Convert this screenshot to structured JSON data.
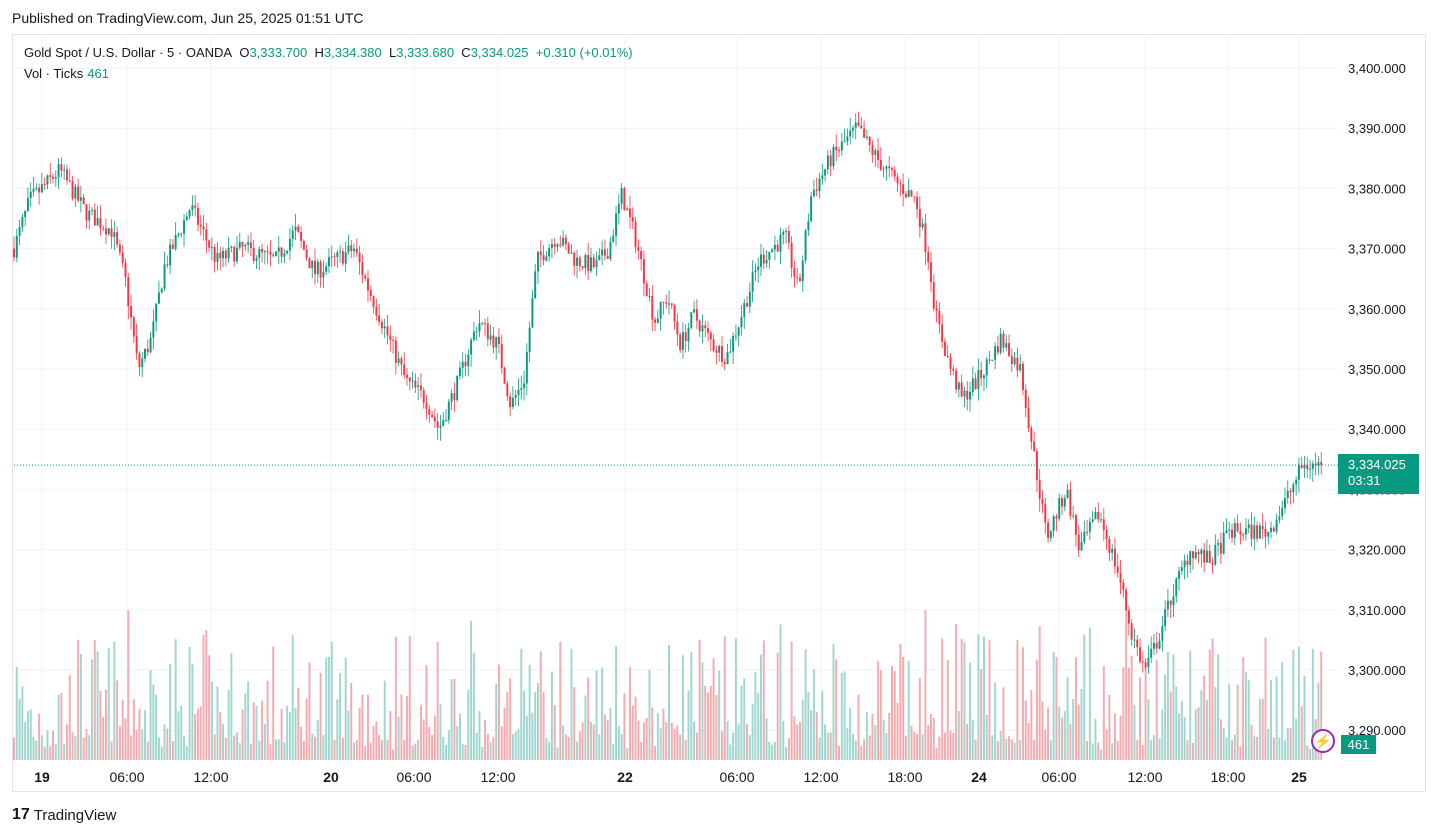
{
  "header": {
    "published": "Published on TradingView.com, Jun 25, 2025 01:51 UTC"
  },
  "legend": {
    "symbol": "Gold Spot / U.S. Dollar · 5 · OANDA",
    "open_label": "O",
    "open": "3,333.700",
    "high_label": "H",
    "high": "3,334.380",
    "low_label": "L",
    "low": "3,333.680",
    "close_label": "C",
    "close": "3,334.025",
    "change": "+0.310 (+0.01%)",
    "vol_label": "Vol · Ticks",
    "vol_value": "461"
  },
  "price_tag": {
    "price": "3,334.025",
    "countdown": "03:31"
  },
  "volume_tag": "461",
  "brand": {
    "logo": "17",
    "name": "TradingView"
  },
  "colors": {
    "up": "#089981",
    "down": "#f23645",
    "up_vol": "#9fd6cf",
    "down_vol": "#f4abb0",
    "grid": "#f0f3fa"
  },
  "chart_data": {
    "type": "candlestick",
    "instrument": "Gold Spot / U.S. Dollar",
    "interval": "5",
    "y_ticks": [
      "3,400.000",
      "3,390.000",
      "3,380.000",
      "3,370.000",
      "3,360.000",
      "3,350.000",
      "3,340.000",
      "3,330.000",
      "3,320.000",
      "3,310.000",
      "3,300.000",
      "3,290.000"
    ],
    "y_tick_values": [
      3400,
      3390,
      3380,
      3370,
      3360,
      3350,
      3340,
      3330,
      3320,
      3310,
      3300,
      3290
    ],
    "ylim": [
      3284,
      3406
    ],
    "x_ticks": [
      {
        "label": "19",
        "day": true
      },
      {
        "label": "06:00",
        "day": false
      },
      {
        "label": "12:00",
        "day": false
      },
      {
        "label": "20",
        "day": true
      },
      {
        "label": "06:00",
        "day": false
      },
      {
        "label": "12:00",
        "day": false
      },
      {
        "label": "22",
        "day": true
      },
      {
        "label": "06:00",
        "day": false
      },
      {
        "label": "12:00",
        "day": false
      },
      {
        "label": "18:00",
        "day": false
      },
      {
        "label": "24",
        "day": true
      },
      {
        "label": "06:00",
        "day": false
      },
      {
        "label": "12:00",
        "day": false
      },
      {
        "label": "18:00",
        "day": false
      },
      {
        "label": "25",
        "day": true
      }
    ],
    "price_path": [
      [
        0,
        3370
      ],
      [
        0.012,
        3378
      ],
      [
        0.035,
        3383
      ],
      [
        0.055,
        3376
      ],
      [
        0.075,
        3373
      ],
      [
        0.085,
        3365
      ],
      [
        0.095,
        3350
      ],
      [
        0.105,
        3355
      ],
      [
        0.115,
        3367
      ],
      [
        0.135,
        3377
      ],
      [
        0.155,
        3368
      ],
      [
        0.175,
        3370
      ],
      [
        0.2,
        3368
      ],
      [
        0.215,
        3373
      ],
      [
        0.23,
        3366
      ],
      [
        0.245,
        3368
      ],
      [
        0.26,
        3370
      ],
      [
        0.27,
        3364
      ],
      [
        0.285,
        3356
      ],
      [
        0.3,
        3348
      ],
      [
        0.315,
        3345
      ],
      [
        0.325,
        3340
      ],
      [
        0.34,
        3348
      ],
      [
        0.355,
        3358
      ],
      [
        0.37,
        3354
      ],
      [
        0.38,
        3344
      ],
      [
        0.39,
        3348
      ],
      [
        0.4,
        3368
      ],
      [
        0.415,
        3372
      ],
      [
        0.43,
        3368
      ],
      [
        0.445,
        3367
      ],
      [
        0.455,
        3370
      ],
      [
        0.465,
        3379
      ],
      [
        0.475,
        3372
      ],
      [
        0.49,
        3358
      ],
      [
        0.5,
        3362
      ],
      [
        0.51,
        3354
      ],
      [
        0.52,
        3359
      ],
      [
        0.535,
        3354
      ],
      [
        0.545,
        3352
      ],
      [
        0.555,
        3358
      ],
      [
        0.57,
        3368
      ],
      [
        0.59,
        3372
      ],
      [
        0.6,
        3363
      ],
      [
        0.61,
        3379
      ],
      [
        0.625,
        3385
      ],
      [
        0.645,
        3390
      ],
      [
        0.66,
        3385
      ],
      [
        0.675,
        3381
      ],
      [
        0.69,
        3378
      ],
      [
        0.7,
        3368
      ],
      [
        0.705,
        3359
      ],
      [
        0.715,
        3351
      ],
      [
        0.725,
        3345
      ],
      [
        0.74,
        3349
      ],
      [
        0.755,
        3355
      ],
      [
        0.77,
        3350
      ],
      [
        0.78,
        3336
      ],
      [
        0.79,
        3322
      ],
      [
        0.805,
        3330
      ],
      [
        0.815,
        3320
      ],
      [
        0.83,
        3326
      ],
      [
        0.845,
        3316
      ],
      [
        0.855,
        3306
      ],
      [
        0.865,
        3300
      ],
      [
        0.875,
        3305
      ],
      [
        0.885,
        3312
      ],
      [
        0.9,
        3320
      ],
      [
        0.915,
        3318
      ],
      [
        0.93,
        3323
      ],
      [
        0.945,
        3323
      ],
      [
        0.96,
        3323
      ],
      [
        0.975,
        3329
      ],
      [
        0.985,
        3333.7
      ],
      [
        0.99,
        3334.025
      ]
    ],
    "last_price": 3334.025,
    "last_volume": 461
  }
}
